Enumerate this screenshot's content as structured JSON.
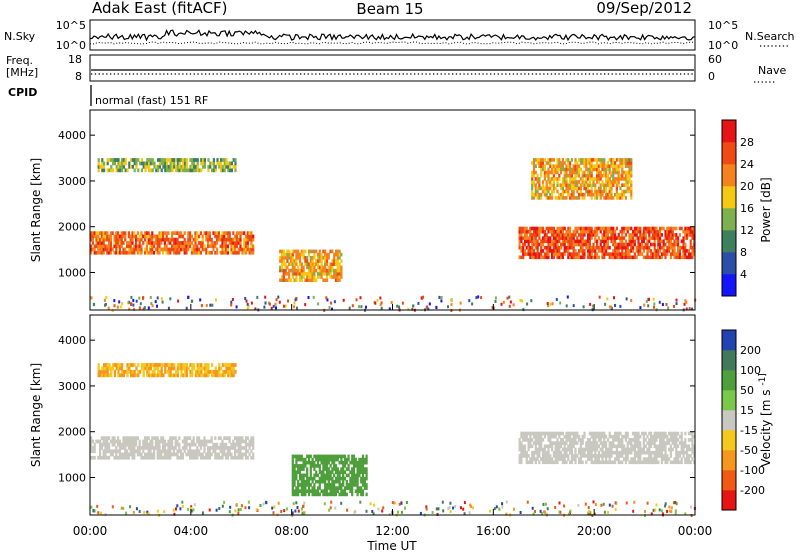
{
  "header": {
    "station": "Adak East (fitACF)",
    "beam": "Beam 15",
    "date": "09/Sep/2012"
  },
  "top_panels": {
    "nsky_label": "N.Sky",
    "nsky_ticks": [
      "10^5",
      "10^0"
    ],
    "nsearch_label": "N.Search",
    "nsearch_ticks": [
      "10^5",
      "10^0"
    ],
    "freq_label_1": "Freq.",
    "freq_label_2": "[MHz]",
    "freq_ticks": [
      "18",
      "8"
    ],
    "nave_label": "Nave",
    "nave_ticks": [
      "60",
      "0"
    ],
    "cpid_label": "CPID",
    "cpid_text": "normal (fast) 151 RF"
  },
  "x_axis": {
    "label": "Time UT",
    "ticks": [
      "00:00",
      "04:00",
      "08:00",
      "12:00",
      "16:00",
      "20:00",
      "00:00"
    ]
  },
  "chart_data": [
    {
      "type": "heatmap",
      "title": "",
      "xlabel": "Time UT",
      "ylabel": "Slant Range [km]",
      "xlim": [
        0,
        24
      ],
      "ylim": [
        180,
        4550
      ],
      "x_ticks": [
        "00:00",
        "04:00",
        "08:00",
        "12:00",
        "16:00",
        "20:00",
        "00:00"
      ],
      "y_ticks": [
        "1000",
        "2000",
        "3000",
        "4000"
      ],
      "colorbar": {
        "label": "Power [dB]",
        "ticks": [
          "4",
          "8",
          "12",
          "16",
          "20",
          "24",
          "28"
        ],
        "colors": [
          "#1414ff",
          "#2b4fa8",
          "#3f7f60",
          "#7fb04f",
          "#f5c814",
          "#f5821e",
          "#f04a14",
          "#e61414"
        ]
      },
      "features": [
        {
          "name": "main band",
          "t_start": 0,
          "t_end": 6.5,
          "range_km": [
            1400,
            1900
          ],
          "level_db": 24
        },
        {
          "name": "upper band",
          "t_start": 0.3,
          "t_end": 5.8,
          "range_km": [
            3200,
            3500
          ],
          "level_db": 14
        },
        {
          "name": "midday patch",
          "t_start": 7.5,
          "t_end": 10,
          "range_km": [
            800,
            1500
          ],
          "level_db": 20
        },
        {
          "name": "afternoon band",
          "t_start": 17,
          "t_end": 24,
          "range_km": [
            1300,
            2000
          ],
          "level_db": 26
        },
        {
          "name": "afternoon upper",
          "t_start": 17.5,
          "t_end": 21.5,
          "range_km": [
            2600,
            3500
          ],
          "level_db": 20
        }
      ]
    },
    {
      "type": "heatmap",
      "title": "",
      "xlabel": "Time UT",
      "ylabel": "Slant Range [km]",
      "xlim": [
        0,
        24
      ],
      "ylim": [
        180,
        4550
      ],
      "x_ticks": [
        "00:00",
        "04:00",
        "08:00",
        "12:00",
        "16:00",
        "20:00",
        "00:00"
      ],
      "y_ticks": [
        "1000",
        "2000",
        "3000",
        "4000"
      ],
      "colorbar": {
        "label": "Velocity [m s^-1]",
        "ticks": [
          "200",
          "100",
          "50",
          "15",
          "-15",
          "-50",
          "-100",
          "-200"
        ],
        "colors": [
          "#2244b0",
          "#3f7a5c",
          "#4f9f3c",
          "#78c84a",
          "#c8c8c0",
          "#f5c81e",
          "#f5961e",
          "#f05a14",
          "#e61414"
        ]
      },
      "features": [
        {
          "name": "ground scatter",
          "t_start": 0,
          "t_end": 6.5,
          "range_km": [
            1400,
            1900
          ],
          "velocity": 0
        },
        {
          "name": "upper band",
          "t_start": 0.3,
          "t_end": 5.8,
          "range_km": [
            3200,
            3500
          ],
          "velocity": -50
        },
        {
          "name": "green patch",
          "t_start": 8,
          "t_end": 11,
          "range_km": [
            600,
            1500
          ],
          "velocity": 50
        },
        {
          "name": "afternoon ground scatter",
          "t_start": 17,
          "t_end": 24,
          "range_km": [
            1300,
            2000
          ],
          "velocity": 0
        }
      ]
    }
  ]
}
